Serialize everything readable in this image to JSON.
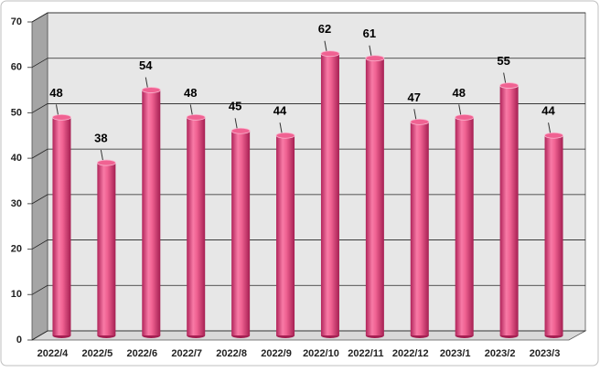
{
  "chart_data": {
    "type": "bar",
    "categories": [
      "2022/4",
      "2022/5",
      "2022/6",
      "2022/7",
      "2022/8",
      "2022/9",
      "2022/10",
      "2022/11",
      "2022/12",
      "2023/1",
      "2023/2",
      "2023/3"
    ],
    "values": [
      48,
      38,
      54,
      48,
      45,
      44,
      62,
      61,
      47,
      48,
      55,
      44
    ],
    "color": "#f06292",
    "ylim": [
      0,
      70
    ],
    "yticks": [
      0,
      10,
      20,
      30,
      40,
      50,
      60,
      70
    ],
    "grid": true
  }
}
